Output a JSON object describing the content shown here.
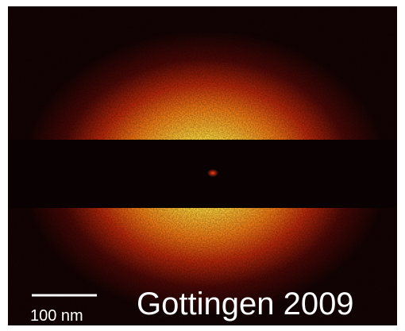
{
  "scale_bar": {
    "label": "100 nm"
  },
  "caption": "Gottingen 2009"
}
